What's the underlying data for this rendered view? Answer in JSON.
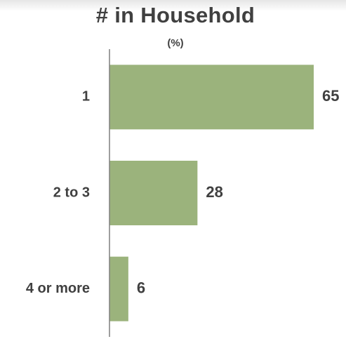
{
  "chart_data": {
    "type": "bar",
    "orientation": "horizontal",
    "title": "# in Household",
    "subtitle": "(%)",
    "categories": [
      "1",
      "2 to 3",
      "4 or more"
    ],
    "values": [
      65,
      28,
      6
    ],
    "xlim": [
      0,
      65
    ],
    "grid": false,
    "legend": "none",
    "bar_color": "#9bb37c",
    "axis_color": "#7f7f7f",
    "text_color": "#404040"
  }
}
